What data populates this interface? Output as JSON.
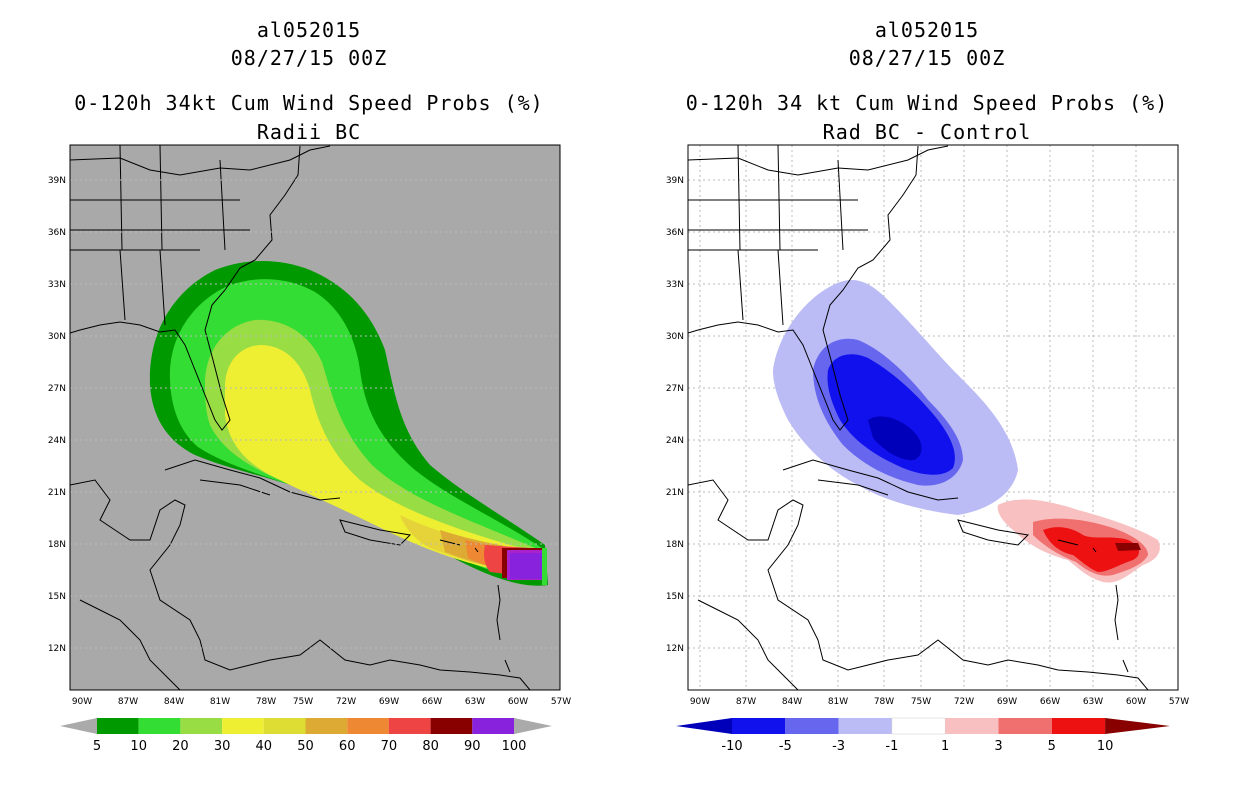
{
  "left": {
    "storm_id": "al052015",
    "datetime": "08/27/15 00Z",
    "title": "0-120h 34kt Cum Wind Speed Probs (%)",
    "subtitle": "Radii BC",
    "colorbar": {
      "labels": [
        "5",
        "10",
        "20",
        "30",
        "40",
        "50",
        "60",
        "70",
        "80",
        "90",
        "100"
      ],
      "colors": [
        "#009900",
        "#33dd33",
        "#99dd44",
        "#eeee33",
        "#dddd33",
        "#ddaa33",
        "#ee8833",
        "#ee4444",
        "#880000",
        "#8822dd"
      ]
    }
  },
  "right": {
    "storm_id": "al052015",
    "datetime": "08/27/15 00Z",
    "title": "0-120h 34 kt Cum Wind Speed Probs (%)",
    "subtitle": "Rad BC - Control",
    "colorbar": {
      "labels": [
        "-10",
        "-5",
        "-3",
        "-1",
        "1",
        "3",
        "5",
        "10"
      ],
      "colors": [
        "#0000bb",
        "#1111ee",
        "#6666ee",
        "#bbbbf5",
        "#ffffff",
        "#f8c0c0",
        "#f07070",
        "#ee1111",
        "#880000"
      ]
    }
  },
  "axes": {
    "lat_labels": [
      "39N",
      "36N",
      "33N",
      "30N",
      "27N",
      "24N",
      "21N",
      "18N",
      "15N",
      "12N"
    ],
    "lon_labels": [
      "90W",
      "87W",
      "84W",
      "81W",
      "78W",
      "75W",
      "72W",
      "69W",
      "66W",
      "63W",
      "60W",
      "57W"
    ]
  }
}
